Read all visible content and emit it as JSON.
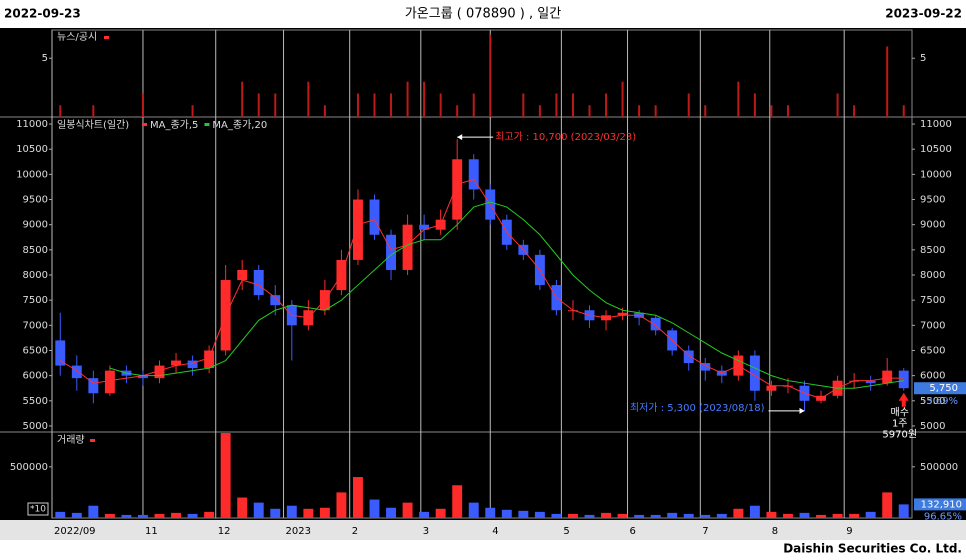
{
  "header": {
    "start_date": "2022-09-23",
    "end_date": "2023-09-22"
  },
  "chart_data": {
    "type": "candlestick",
    "title": "가온그룹 ( 078890 ) , 일간",
    "panel_title": "일봉식차트(일간)",
    "xlim": [
      0,
      52
    ],
    "xticks": [
      {
        "value": 0,
        "label": "2022/09"
      },
      {
        "value": 5.5,
        "label": "11"
      },
      {
        "value": 9.9,
        "label": "12"
      },
      {
        "value": 14,
        "label": "2023"
      },
      {
        "value": 18,
        "label": "2"
      },
      {
        "value": 22.3,
        "label": "3"
      },
      {
        "value": 26.5,
        "label": "4"
      },
      {
        "value": 30.8,
        "label": "5"
      },
      {
        "value": 34.8,
        "label": "6"
      },
      {
        "value": 39.2,
        "label": "7"
      },
      {
        "value": 43.4,
        "label": "8"
      },
      {
        "value": 47.9,
        "label": "9"
      }
    ],
    "ylim": [
      4880,
      11140
    ],
    "yticks": [
      5000,
      5500,
      6000,
      6500,
      7000,
      7500,
      8000,
      8500,
      9000,
      9500,
      10000,
      10500,
      11000
    ],
    "up_color": "#ff2a2a",
    "down_color": "#3a5cff",
    "candles": {
      "open": [
        6700,
        6200,
        5950,
        5650,
        6100,
        6000,
        5950,
        6200,
        6300,
        6150,
        6500,
        7900,
        8100,
        7600,
        7400,
        7000,
        7300,
        7700,
        8300,
        9500,
        8800,
        8100,
        9000,
        8900,
        9100,
        10300,
        9700,
        9100,
        8600,
        8400,
        7800,
        7300,
        7300,
        7100,
        7200,
        7250,
        7150,
        6900,
        6500,
        6250,
        6100,
        6000,
        6400,
        5700,
        5800,
        5800,
        5500,
        5600,
        5900,
        5900,
        5850,
        6100
      ],
      "high": [
        7250,
        6400,
        6100,
        6200,
        6200,
        6100,
        6300,
        6450,
        6400,
        6600,
        8200,
        8300,
        8200,
        7800,
        7500,
        7500,
        7900,
        8500,
        9700,
        9600,
        8900,
        9200,
        9200,
        9300,
        10700,
        10400,
        9800,
        9200,
        8700,
        8500,
        7900,
        7500,
        7400,
        7300,
        7350,
        7300,
        7200,
        6950,
        6600,
        6350,
        6200,
        6500,
        6500,
        5900,
        5950,
        5900,
        5700,
        6000,
        6050,
        6000,
        6350,
        6150
      ],
      "low": [
        6000,
        5700,
        5450,
        5600,
        5850,
        5800,
        5850,
        6050,
        6000,
        6050,
        6400,
        7700,
        7500,
        7200,
        6300,
        6900,
        7200,
        7600,
        8200,
        8700,
        7900,
        8000,
        8700,
        8800,
        8900,
        9500,
        9000,
        8500,
        8300,
        7700,
        7200,
        7100,
        6950,
        6900,
        7100,
        7000,
        6800,
        6400,
        6100,
        5900,
        5850,
        5900,
        5500,
        5600,
        5650,
        5300,
        5450,
        5550,
        5750,
        5700,
        5800,
        5700
      ],
      "close": [
        6200,
        5950,
        5650,
        6100,
        6000,
        5950,
        6200,
        6300,
        6150,
        6500,
        7900,
        8100,
        7600,
        7400,
        7000,
        7300,
        7700,
        8300,
        9500,
        8800,
        8100,
        9000,
        8900,
        9100,
        10300,
        9700,
        9100,
        8600,
        8400,
        7800,
        7300,
        7300,
        7100,
        7200,
        7250,
        7150,
        6900,
        6500,
        6250,
        6100,
        6000,
        6400,
        5700,
        5800,
        5800,
        5500,
        5600,
        5900,
        5900,
        5850,
        6100,
        5750
      ]
    },
    "series": [
      {
        "name": "MA_종가,5",
        "color": "#ff3030",
        "values": [
          6300,
          6100,
          5850,
          5900,
          5950,
          6000,
          6100,
          6200,
          6250,
          6350,
          7200,
          7900,
          7800,
          7550,
          7200,
          7150,
          7500,
          8000,
          9000,
          9100,
          8500,
          8600,
          8900,
          9000,
          9800,
          9900,
          9400,
          8850,
          8500,
          8100,
          7550,
          7300,
          7200,
          7150,
          7200,
          7200,
          7000,
          6700,
          6400,
          6200,
          6050,
          6200,
          6000,
          5800,
          5800,
          5650,
          5550,
          5750,
          5900,
          5900,
          5950,
          5950
        ]
      },
      {
        "name": "MA_종가,20",
        "color": "#22cc22",
        "values": [
          null,
          null,
          null,
          6150,
          6050,
          6000,
          6000,
          6050,
          6100,
          6150,
          6300,
          6700,
          7100,
          7300,
          7400,
          7350,
          7300,
          7500,
          7800,
          8100,
          8400,
          8600,
          8700,
          8700,
          9000,
          9350,
          9450,
          9350,
          9100,
          8800,
          8400,
          8000,
          7700,
          7450,
          7300,
          7250,
          7200,
          7050,
          6850,
          6650,
          6450,
          6300,
          6150,
          6000,
          5900,
          5850,
          5800,
          5750,
          5750,
          5800,
          5850,
          5900
        ]
      }
    ],
    "annotations": {
      "high": "최고가 : 10,700 (2023/03/23)",
      "low": "최저가 : 5,300 (2023/08/18)"
    },
    "current_price": {
      "value": 5750,
      "label": "5,750"
    },
    "change": "-3.69%",
    "trade": {
      "side": "매수",
      "quantity": "1주",
      "price": "5970원"
    },
    "news": {
      "title": "뉴스/공시",
      "ylim": [
        0,
        7.4
      ],
      "yticks": [
        5
      ],
      "values": [
        1,
        null,
        1,
        null,
        null,
        2,
        null,
        null,
        1,
        null,
        null,
        3,
        2,
        2,
        null,
        3,
        1,
        null,
        2,
        2,
        2,
        3,
        3,
        2,
        1,
        2,
        7,
        null,
        2,
        1,
        2,
        2,
        1,
        2,
        3,
        1,
        1,
        null,
        2,
        1,
        null,
        3,
        2,
        1,
        1,
        null,
        null,
        2,
        1,
        null,
        6,
        1
      ]
    },
    "volume": {
      "title": "거래량",
      "scale_label": "*10",
      "ylim": [
        0,
        840000
      ],
      "yticks": [
        500000
      ],
      "values": [
        60000,
        50000,
        120000,
        40000,
        30000,
        30000,
        40000,
        50000,
        40000,
        60000,
        830000,
        200000,
        150000,
        90000,
        120000,
        90000,
        100000,
        250000,
        400000,
        180000,
        100000,
        150000,
        60000,
        90000,
        320000,
        150000,
        100000,
        80000,
        70000,
        60000,
        40000,
        40000,
        30000,
        50000,
        40000,
        30000,
        30000,
        50000,
        40000,
        30000,
        40000,
        90000,
        120000,
        60000,
        40000,
        50000,
        30000,
        40000,
        40000,
        60000,
        250000,
        132910
      ],
      "current": {
        "value": 132910,
        "label": "132,910"
      },
      "ratio": "96.65%"
    }
  },
  "footer": "Daishin Securities Co. Ltd."
}
